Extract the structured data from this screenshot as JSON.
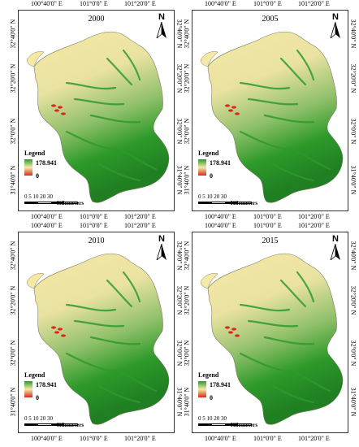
{
  "coords": {
    "lon": [
      "100°40'0\" E",
      "101°0'0\" E",
      "101°20'0\" E"
    ],
    "lat": [
      "32°40'0\" N",
      "32°20'0\" N",
      "32°0'0\" N",
      "31°40'0\" N"
    ]
  },
  "legend": {
    "title": "Legend",
    "max": "178.941",
    "min": "0"
  },
  "scale": {
    "numbers": "0  5 10    20     30",
    "unit": "Kilometers"
  },
  "north_label": "N",
  "panels": [
    {
      "year": "2000"
    },
    {
      "year": "2005"
    },
    {
      "year": "2010"
    },
    {
      "year": "2015"
    }
  ],
  "colors": {
    "high": "#2e9a2a",
    "mid": "#f6e9a8",
    "low": "#d62a1a"
  }
}
